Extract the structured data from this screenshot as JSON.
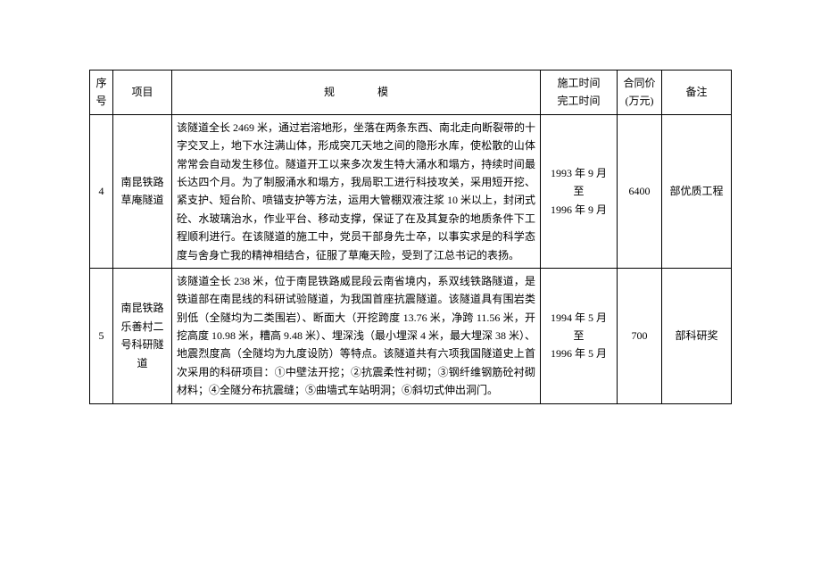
{
  "columns": {
    "seq": "序号",
    "project": "项目",
    "scale_a": "规",
    "scale_b": "模",
    "time_line1": "施工时间",
    "time_line2": "完工时间",
    "price_line1": "合同价",
    "price_line2": "(万元)",
    "note": "备注"
  },
  "rows": [
    {
      "seq": "4",
      "project": "南昆铁路草庵隧道",
      "scale": "该隧道全长 2469 米，通过岩溶地形，坐落在两条东西、南北走向断裂带的十字交叉上，地下水注满山体，形成突兀天地之间的隐形水库，使松散的山体常常会自动发生移位。隧道开工以来多次发生特大涌水和塌方，持续时间最长达四个月。为了制服涌水和塌方，我局职工进行科技攻关，采用短开挖、紧支护、短台阶、喷锚支护等方法，运用大管棚双液注浆 10 米以上，封闭式砼、水玻璃治水，作业平台、移动支撑，保证了在及其复杂的地质条件下工程顺利进行。在该隧道的施工中，党员干部身先士卒，以事实求是的科学态度与舍身亡我的精神相结合，征服了草庵天险，受到了江总书记的表扬。",
      "time": "1993 年 9 月\n至\n1996 年 9 月",
      "price": "6400",
      "note": "部优质工程"
    },
    {
      "seq": "5",
      "project": "南昆铁路乐善村二号科研隧道",
      "scale": "该隧道全长 238 米，位于南昆铁路威昆段云南省境内，系双线铁路隧道，是铁道部在南昆线的科研试验隧道，为我国首座抗震隧道。该隧道具有围岩类别低（全隧均为二类围岩）、断面大（开挖跨度 13.76 米，净跨 11.56 米，开挖高度 10.98 米，糟高 9.48 米）、埋深浅（最小埋深 4 米，最大埋深 38 米）、地震烈度高（全隧均为九度设防）等特点。该隧道共有六项我国隧道史上首次采用的科研项目：①中壁法开挖；②抗震柔性衬砌；③钢纤维钢筋砼衬砌材料；④全隧分布抗震缝；⑤曲墙式车站明洞；⑥斜切式伸出洞门。",
      "time": "1994 年 5 月\n至\n1996 年 5 月",
      "price": "700",
      "note": "部科研奖"
    }
  ],
  "style": {
    "font_family": "SimSun",
    "font_size_pt": 9,
    "text_color": "#000000",
    "border_color": "#000000",
    "background_color": "#ffffff",
    "line_height": 1.7
  }
}
